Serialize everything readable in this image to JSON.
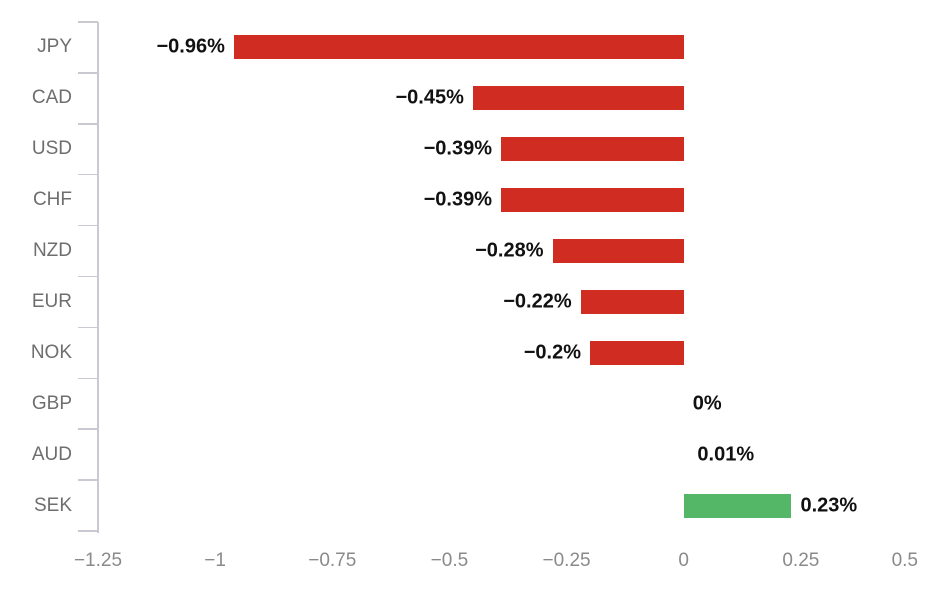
{
  "chart_data": {
    "type": "bar",
    "orientation": "horizontal",
    "title": "",
    "xlabel": "",
    "ylabel": "",
    "categories": [
      "JPY",
      "CAD",
      "USD",
      "CHF",
      "NZD",
      "EUR",
      "NOK",
      "GBP",
      "AUD",
      "SEK"
    ],
    "values": [
      -0.96,
      -0.45,
      -0.39,
      -0.39,
      -0.28,
      -0.22,
      -0.2,
      0,
      0.01,
      0.23
    ],
    "labels": [
      "−0.96%",
      "−0.45%",
      "−0.39%",
      "−0.39%",
      "−0.28%",
      "−0.22%",
      "−0.2%",
      "0%",
      "0.01%",
      "0.23%"
    ],
    "xlim": [
      -1.25,
      0.5
    ],
    "x_ticks": [
      -1.25,
      -1,
      -0.75,
      -0.5,
      -0.25,
      0,
      0.25,
      0.5
    ],
    "x_tick_labels": [
      "−1.25",
      "−1",
      "−0.75",
      "−0.5",
      "−0.25",
      "0",
      "0.25",
      "0.5"
    ],
    "grid": false,
    "legend": false,
    "value_unit": "%",
    "colors": {
      "negative_bar": "#d12c21",
      "positive_bar": "#54b768",
      "axis_line": "#c9c9d2",
      "y_tick_label": "#6e6e6e",
      "x_tick_label": "#8a8a8a",
      "data_label": "#111111",
      "background": "#ffffff"
    }
  }
}
